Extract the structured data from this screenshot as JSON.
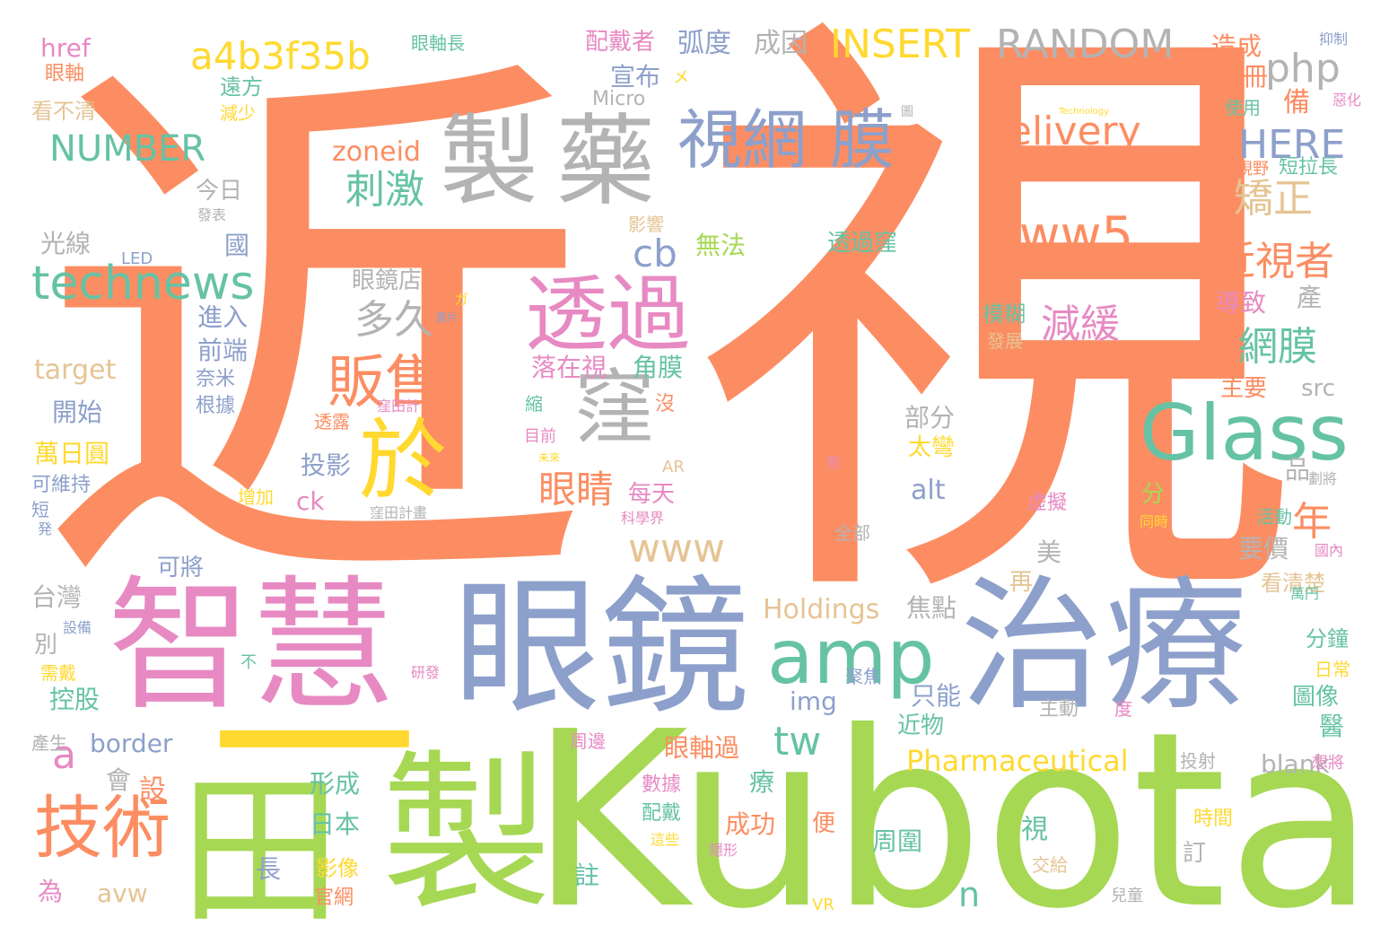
{
  "palette": {
    "orange": "#fc8d62",
    "green": "#a6d854",
    "teal": "#66c2a5",
    "blue": "#8da0cb",
    "pink": "#e78ac3",
    "yellow": "#ffd92f",
    "tan": "#e5c494",
    "gray": "#b3b3b3"
  },
  "words": [
    {
      "text": "視",
      "color": "orange"
    },
    {
      "text": "近",
      "color": "orange"
    },
    {
      "text": "Kubota",
      "color": "green"
    },
    {
      "text": "製",
      "color": "green"
    },
    {
      "text": "田",
      "color": "green"
    },
    {
      "text": "一",
      "color": "yellow"
    },
    {
      "text": "智慧",
      "color": "pink"
    },
    {
      "text": "眼鏡",
      "color": "blue"
    },
    {
      "text": "治療",
      "color": "blue"
    },
    {
      "text": "製",
      "color": "gray"
    },
    {
      "text": "藥",
      "color": "gray"
    },
    {
      "text": "視網",
      "color": "blue"
    },
    {
      "text": "膜",
      "color": "blue"
    },
    {
      "text": "透過",
      "color": "pink"
    },
    {
      "text": "窪",
      "color": "gray"
    },
    {
      "text": "於",
      "color": "yellow"
    },
    {
      "text": "Glass",
      "color": "teal"
    },
    {
      "text": "amp",
      "color": "teal"
    },
    {
      "text": "technews",
      "color": "teal"
    },
    {
      "text": "技術",
      "color": "orange"
    },
    {
      "text": "販售",
      "color": "orange"
    },
    {
      "text": "a4b3f35b",
      "color": "yellow"
    },
    {
      "text": "NUMBER",
      "color": "teal"
    },
    {
      "text": "INSERT",
      "color": "yellow"
    },
    {
      "text": "RANDOM",
      "color": "gray"
    },
    {
      "text": "php",
      "color": "gray"
    },
    {
      "text": "delivery",
      "color": "orange"
    },
    {
      "text": "HERE",
      "color": "blue"
    },
    {
      "text": "www5",
      "color": "orange"
    },
    {
      "text": "刺激",
      "color": "teal"
    },
    {
      "text": "矯正",
      "color": "tan"
    },
    {
      "text": "近視者",
      "color": "orange"
    },
    {
      "text": "多久",
      "color": "gray"
    },
    {
      "text": "cb",
      "color": "blue"
    },
    {
      "text": "減緩",
      "color": "pink"
    },
    {
      "text": "網膜",
      "color": "teal"
    },
    {
      "text": "眼睛",
      "color": "orange"
    },
    {
      "text": "www",
      "color": "tan"
    },
    {
      "text": "年",
      "color": "orange"
    },
    {
      "text": "tw",
      "color": "teal"
    },
    {
      "text": "a",
      "color": "pink"
    },
    {
      "text": "Pharmaceutical",
      "color": "yellow"
    },
    {
      "text": "Holdings",
      "color": "tan"
    },
    {
      "text": "弧度",
      "color": "blue"
    },
    {
      "text": "成因",
      "color": "gray"
    },
    {
      "text": "配戴者",
      "color": "pink"
    },
    {
      "text": "宣布",
      "color": "blue"
    },
    {
      "text": "造成",
      "color": "orange"
    },
    {
      "text": "冊",
      "color": "orange"
    },
    {
      "text": "備",
      "color": "orange"
    },
    {
      "text": "後",
      "color": "orange"
    },
    {
      "text": "使用",
      "color": "teal"
    },
    {
      "text": "視野",
      "color": "orange"
    },
    {
      "text": "短拉長",
      "color": "teal"
    },
    {
      "text": "抑制",
      "color": "blue"
    },
    {
      "text": "惡化",
      "color": "pink"
    },
    {
      "text": "href",
      "color": "pink"
    },
    {
      "text": "眼軸",
      "color": "orange"
    },
    {
      "text": "看不清",
      "color": "tan"
    },
    {
      "text": "眼軸長",
      "color": "teal"
    },
    {
      "text": "遠方",
      "color": "teal"
    },
    {
      "text": "減少",
      "color": "yellow"
    },
    {
      "text": "Micro",
      "color": "gray"
    },
    {
      "text": "メ",
      "color": "yellow"
    },
    {
      "text": "zoneid",
      "color": "orange"
    },
    {
      "text": "今日",
      "color": "gray"
    },
    {
      "text": "光線",
      "color": "gray"
    },
    {
      "text": "國",
      "color": "blue"
    },
    {
      "text": "LED",
      "color": "blue"
    },
    {
      "text": "發表",
      "color": "gray"
    },
    {
      "text": "無法",
      "color": "green"
    },
    {
      "text": "影響",
      "color": "tan"
    },
    {
      "text": "透過窪",
      "color": "teal"
    },
    {
      "text": "眼鏡店",
      "color": "gray"
    },
    {
      "text": "進入",
      "color": "blue"
    },
    {
      "text": "前端",
      "color": "blue"
    },
    {
      "text": "奈米",
      "color": "blue"
    },
    {
      "text": "根據",
      "color": "blue"
    },
    {
      "text": "target",
      "color": "tan"
    },
    {
      "text": "開始",
      "color": "blue"
    },
    {
      "text": "萬日圓",
      "color": "yellow"
    },
    {
      "text": "可維持",
      "color": "blue"
    },
    {
      "text": "短",
      "color": "blue"
    },
    {
      "text": "落在視",
      "color": "pink"
    },
    {
      "text": "角膜",
      "color": "teal"
    },
    {
      "text": "模糊",
      "color": "teal"
    },
    {
      "text": "發展",
      "color": "tan"
    },
    {
      "text": "導致",
      "color": "pink"
    },
    {
      "text": "產",
      "color": "gray"
    },
    {
      "text": "主要",
      "color": "orange"
    },
    {
      "text": "src",
      "color": "gray"
    },
    {
      "text": "部分",
      "color": "gray"
    },
    {
      "text": "太彎",
      "color": "yellow"
    },
    {
      "text": "品",
      "color": "gray"
    },
    {
      "text": "投影",
      "color": "blue"
    },
    {
      "text": "ck",
      "color": "pink"
    },
    {
      "text": "增加",
      "color": "yellow"
    },
    {
      "text": "窪田計畫",
      "color": "gray"
    },
    {
      "text": "透露",
      "color": "orange"
    },
    {
      "text": "窪田計",
      "color": "pink"
    },
    {
      "text": "縮",
      "color": "teal"
    },
    {
      "text": "目前",
      "color": "pink"
    },
    {
      "text": "沒",
      "color": "orange"
    },
    {
      "text": "AR",
      "color": "tan"
    },
    {
      "text": "每天",
      "color": "pink"
    },
    {
      "text": "alt",
      "color": "blue"
    },
    {
      "text": "分",
      "color": "green"
    },
    {
      "text": "要價",
      "color": "gray"
    },
    {
      "text": "活動",
      "color": "teal"
    },
    {
      "text": "看清楚",
      "color": "tan"
    },
    {
      "text": "虛擬",
      "color": "pink"
    },
    {
      "text": "科學界",
      "color": "pink"
    },
    {
      "text": "全部",
      "color": "gray"
    },
    {
      "text": "同時",
      "color": "yellow"
    },
    {
      "text": "國內",
      "color": "pink"
    },
    {
      "text": "萬円",
      "color": "teal"
    },
    {
      "text": "台灣",
      "color": "gray"
    },
    {
      "text": "可將",
      "color": "blue"
    },
    {
      "text": "別",
      "color": "gray"
    },
    {
      "text": "需戴",
      "color": "yellow"
    },
    {
      "text": "控股",
      "color": "teal"
    },
    {
      "text": "設備",
      "color": "blue"
    },
    {
      "text": "不",
      "color": "teal"
    },
    {
      "text": "研發",
      "color": "pink"
    },
    {
      "text": "焦點",
      "color": "gray"
    },
    {
      "text": "美",
      "color": "gray"
    },
    {
      "text": "再",
      "color": "tan"
    },
    {
      "text": "只能",
      "color": "blue"
    },
    {
      "text": "近物",
      "color": "teal"
    },
    {
      "text": "img",
      "color": "blue"
    },
    {
      "text": "聚焦",
      "color": "blue"
    },
    {
      "text": "分鐘",
      "color": "teal"
    },
    {
      "text": "日常",
      "color": "yellow"
    },
    {
      "text": "圖像",
      "color": "teal"
    },
    {
      "text": "醫",
      "color": "teal"
    },
    {
      "text": "主動",
      "color": "gray"
    },
    {
      "text": "度",
      "color": "pink"
    },
    {
      "text": "產生",
      "color": "gray"
    },
    {
      "text": "border",
      "color": "blue"
    },
    {
      "text": "會",
      "color": "gray"
    },
    {
      "text": "設",
      "color": "orange"
    },
    {
      "text": "眼軸過",
      "color": "orange"
    },
    {
      "text": "blank",
      "color": "gray"
    },
    {
      "text": "投射",
      "color": "gray"
    },
    {
      "text": "想將",
      "color": "pink"
    },
    {
      "text": "形成",
      "color": "teal"
    },
    {
      "text": "日本",
      "color": "teal"
    },
    {
      "text": "療",
      "color": "teal"
    },
    {
      "text": "數據",
      "color": "pink"
    },
    {
      "text": "配戴",
      "color": "teal"
    },
    {
      "text": "成功",
      "color": "orange"
    },
    {
      "text": "便",
      "color": "orange"
    },
    {
      "text": "視",
      "color": "teal"
    },
    {
      "text": "周圍",
      "color": "teal"
    },
    {
      "text": "時間",
      "color": "yellow"
    },
    {
      "text": "訂",
      "color": "gray"
    },
    {
      "text": "為",
      "color": "pink"
    },
    {
      "text": "長",
      "color": "blue"
    },
    {
      "text": "影像",
      "color": "yellow"
    },
    {
      "text": "avw",
      "color": "tan"
    },
    {
      "text": "官網",
      "color": "orange"
    },
    {
      "text": "註",
      "color": "teal"
    },
    {
      "text": "n",
      "color": "teal"
    },
    {
      "text": "交給",
      "color": "tan"
    },
    {
      "text": "VR",
      "color": "yellow"
    },
    {
      "text": "兒童",
      "color": "gray"
    },
    {
      "text": "這些",
      "color": "yellow"
    },
    {
      "text": "隱形",
      "color": "pink"
    },
    {
      "text": "周邊",
      "color": "pink"
    },
    {
      "text": "圖",
      "color": "gray"
    },
    {
      "text": "Technology",
      "color": "yellow"
    },
    {
      "text": "劃將",
      "color": "gray"
    },
    {
      "text": "ガ",
      "color": "yellow"
    },
    {
      "text": "圖片",
      "color": "blue"
    },
    {
      "text": "ネ",
      "color": "orange"
    },
    {
      "text": "亮",
      "color": "pink"
    },
    {
      "text": "発",
      "color": "blue"
    },
    {
      "text": "未來",
      "color": "yellow"
    }
  ]
}
